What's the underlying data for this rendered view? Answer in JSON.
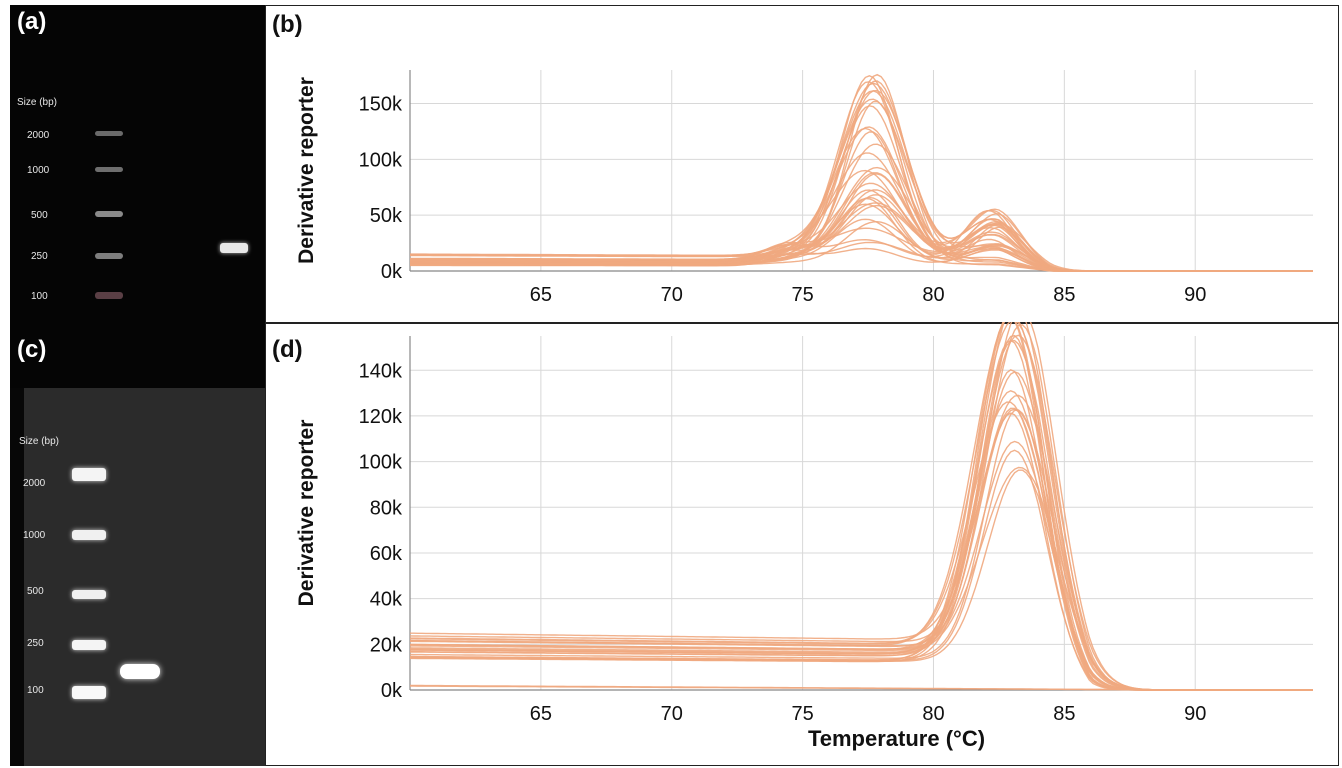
{
  "panels": {
    "a": {
      "label": "(a)"
    },
    "b": {
      "label": "(b)"
    },
    "c": {
      "label": "(c)"
    },
    "d": {
      "label": "(d)"
    }
  },
  "gel_a": {
    "size_title": "Size (bp)",
    "ladder": [
      "2000",
      "1000",
      "500",
      "250",
      "100"
    ]
  },
  "gel_c": {
    "size_title": "Size (bp)",
    "ladder": [
      "2000",
      "1000",
      "500",
      "250",
      "100"
    ]
  },
  "colors": {
    "curve": "#f0a880",
    "grid": "#d8d8d8",
    "axis": "#888888",
    "text": "#111111"
  },
  "chart_data": [
    {
      "type": "line",
      "panel": "b",
      "xlabel": "",
      "ylabel": "Derivative reporter",
      "xlim": [
        60,
        94.5
      ],
      "ylim": [
        0,
        180000
      ],
      "x_ticks": [
        65,
        70,
        75,
        80,
        85,
        90
      ],
      "x_tick_labels": [
        "65",
        "70",
        "75",
        "80",
        "85",
        "90"
      ],
      "y_ticks": [
        0,
        50000,
        100000,
        150000
      ],
      "y_tick_labels": [
        "0k",
        "50k",
        "100k",
        "150k"
      ],
      "curve_family": {
        "count": 34,
        "baseline_range": [
          5000,
          16000
        ],
        "peaks": [
          {
            "center": 77.6,
            "width": 1.2,
            "height_range": [
              8000,
              175000
            ]
          },
          {
            "center": 74.5,
            "width": 0.9,
            "height_range": [
              0,
              15000
            ]
          },
          {
            "center": 82.3,
            "width": 1.0,
            "height_range": [
              0,
              50000
            ]
          }
        ]
      }
    },
    {
      "type": "line",
      "panel": "d",
      "xlabel": "Temperature (°C)",
      "ylabel": "Derivative reporter",
      "xlim": [
        60,
        94.5
      ],
      "ylim": [
        0,
        155000
      ],
      "x_ticks": [
        65,
        70,
        75,
        80,
        85,
        90
      ],
      "x_tick_labels": [
        "65",
        "70",
        "75",
        "80",
        "85",
        "90"
      ],
      "y_ticks": [
        0,
        20000,
        40000,
        60000,
        80000,
        100000,
        120000,
        140000
      ],
      "y_tick_labels": [
        "0k",
        "20k",
        "40k",
        "60k",
        "80k",
        "100k",
        "120k",
        "140k"
      ],
      "curve_family": {
        "count": 26,
        "baseline_range": [
          13000,
          25000
        ],
        "low_curves": 2,
        "peaks": [
          {
            "center": 83.1,
            "width": 1.3,
            "height_range": [
              80000,
              155000
            ]
          }
        ]
      }
    }
  ]
}
